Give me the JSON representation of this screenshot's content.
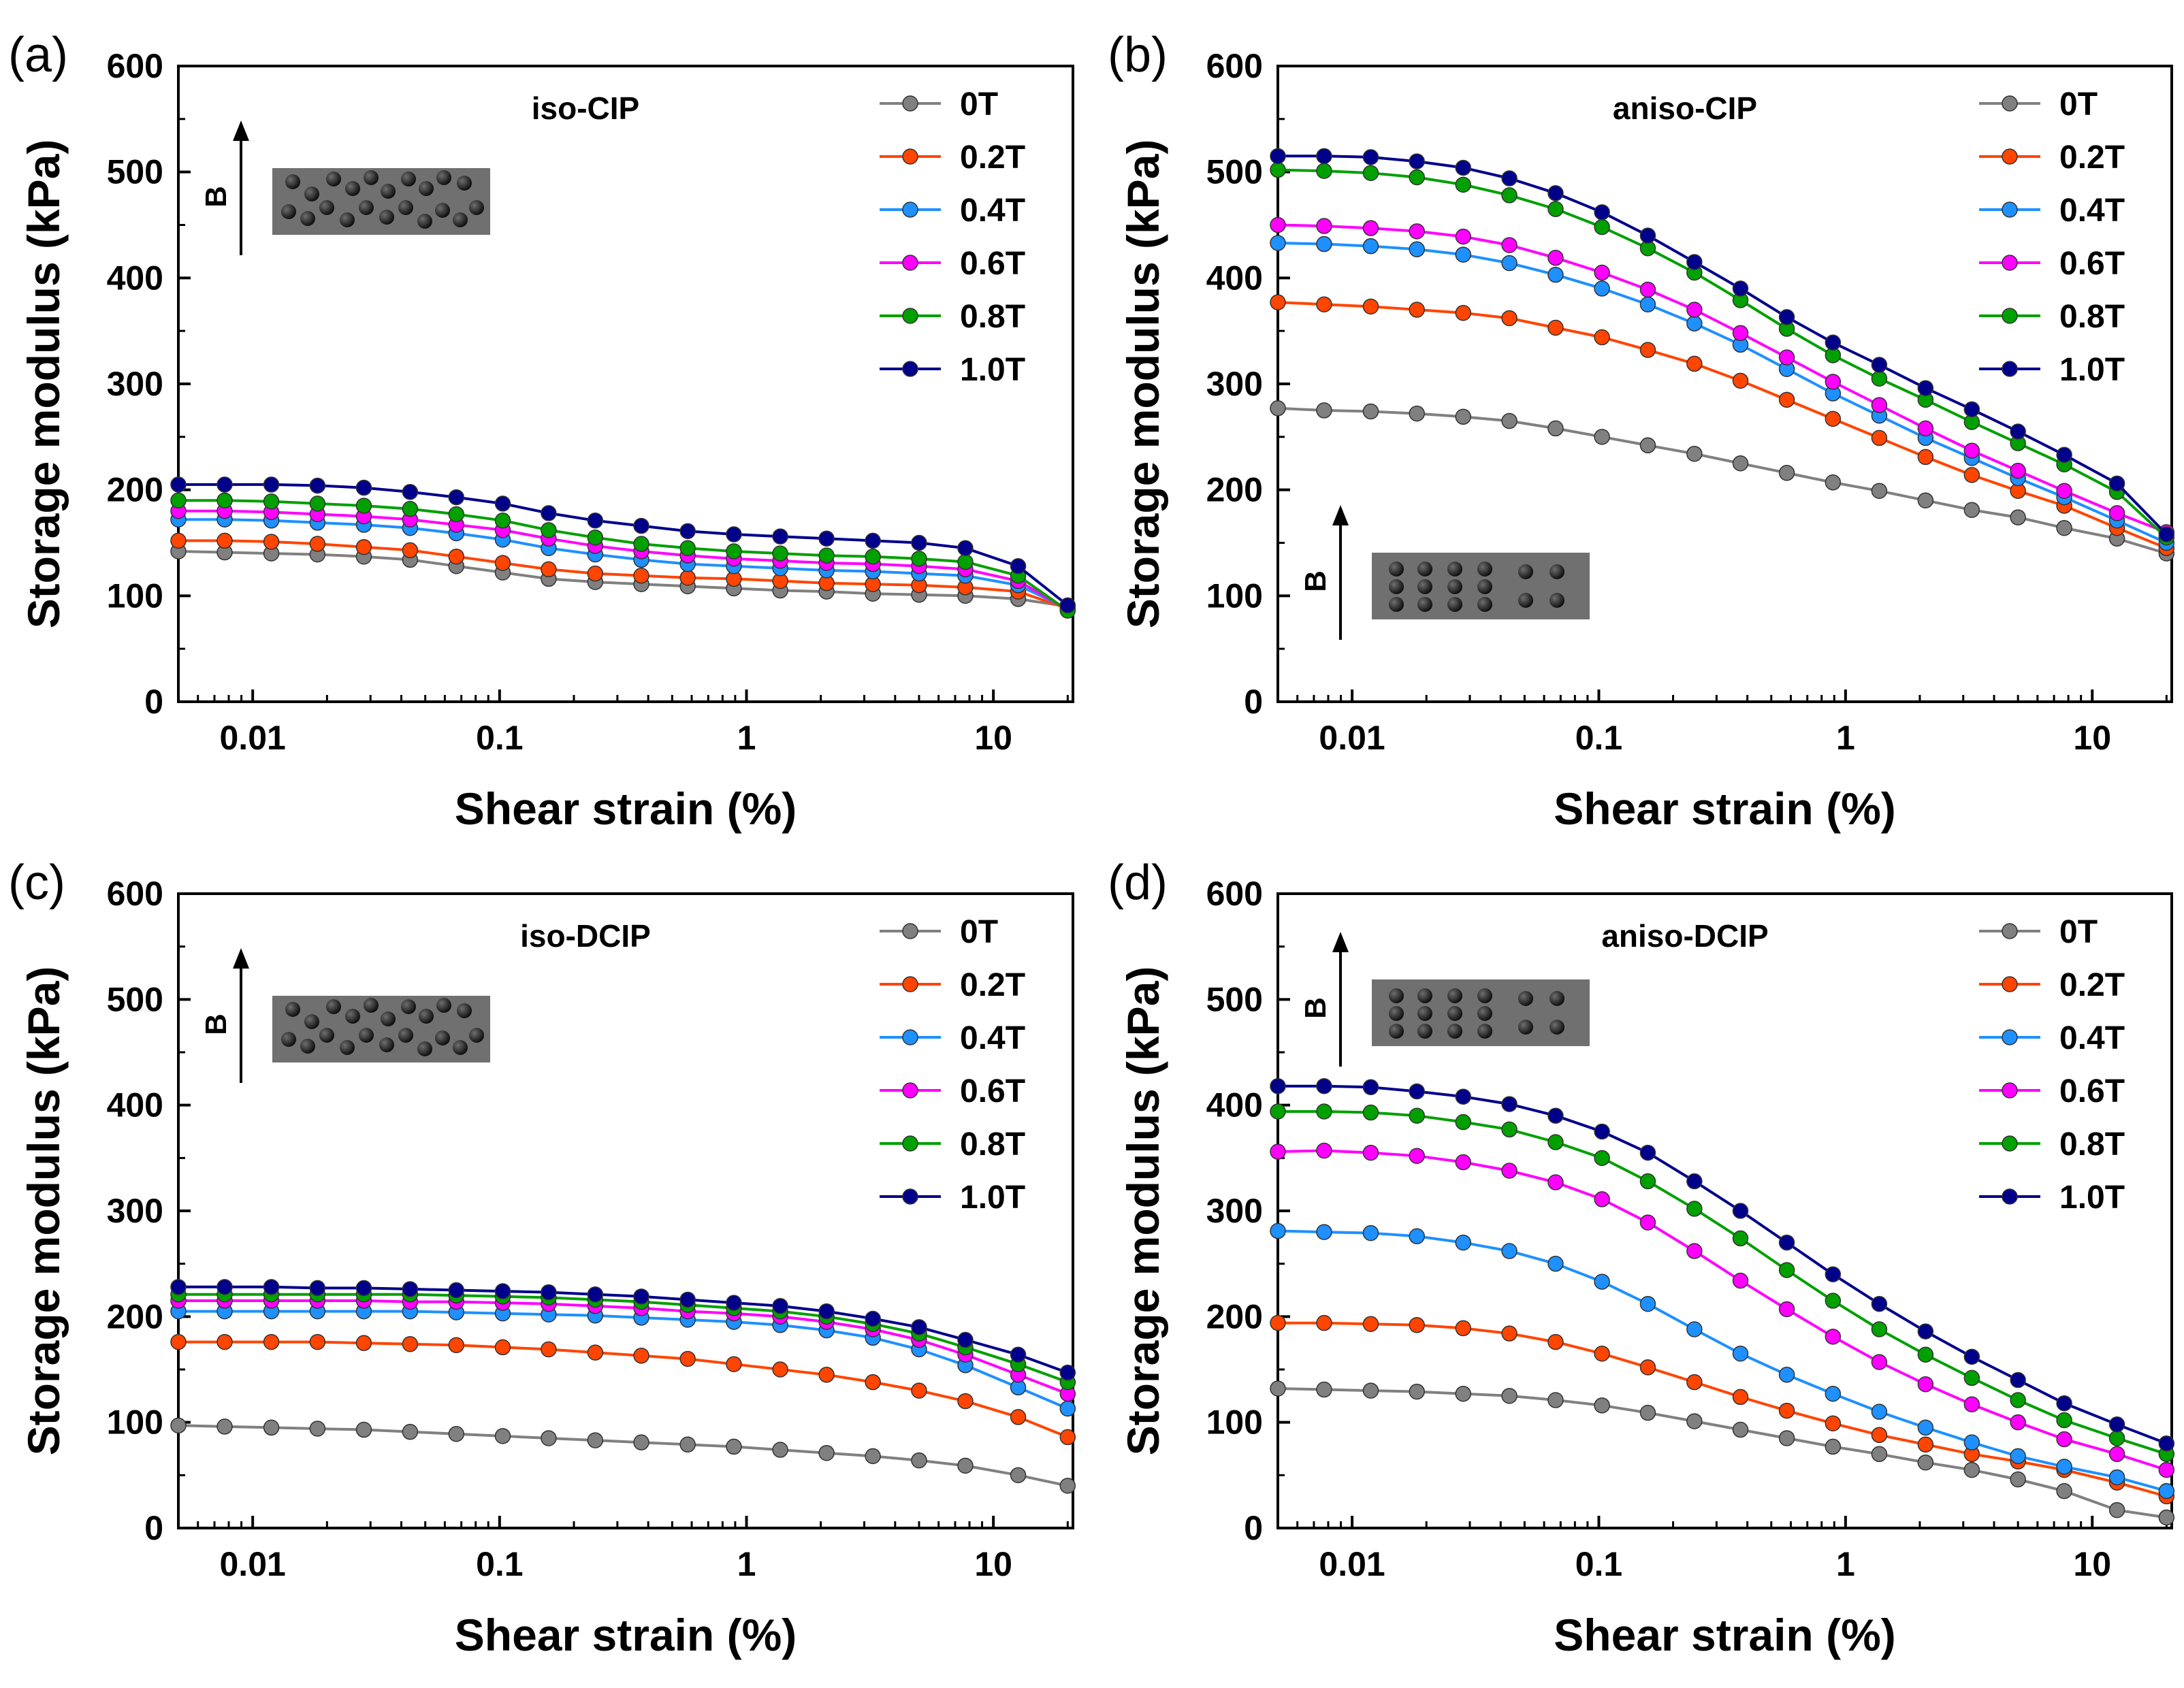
{
  "figure": {
    "x_ticks": [
      "0.01",
      "0.1",
      "1",
      "10"
    ],
    "y_ticks": [
      "0",
      "100",
      "200",
      "300",
      "400",
      "500",
      "600"
    ],
    "field_label": "B"
  },
  "chart_data": [
    {
      "type": "line",
      "panel": "(a)",
      "title": "iso-CIP",
      "xlabel": "Shear strain (%)",
      "ylabel": "Storage modulus (kPa)",
      "x_scale": "log",
      "xlim": [
        0.005,
        21
      ],
      "ylim": [
        0,
        600
      ],
      "legend_position": "top-right",
      "inset": "isotropic",
      "x": [
        0.005,
        0.0077,
        0.0119,
        0.0183,
        0.0282,
        0.0434,
        0.0668,
        0.103,
        0.158,
        0.244,
        0.375,
        0.578,
        0.889,
        1.37,
        2.11,
        3.25,
        5.0,
        7.7,
        12.6,
        20
      ],
      "series": [
        {
          "name": "0T",
          "color": "#808080",
          "values": [
            142,
            141,
            140,
            139,
            137,
            134,
            128,
            122,
            116,
            113,
            111,
            109,
            107,
            105,
            104,
            102,
            101,
            100,
            97,
            90
          ]
        },
        {
          "name": "0.2T",
          "color": "#ff4500",
          "values": [
            152,
            152,
            151,
            149,
            146,
            143,
            137,
            131,
            125,
            121,
            119,
            117,
            116,
            114,
            112,
            111,
            110,
            108,
            104,
            88
          ]
        },
        {
          "name": "0.4T",
          "color": "#1e90ff",
          "values": [
            172,
            172,
            171,
            169,
            167,
            164,
            159,
            153,
            145,
            139,
            134,
            130,
            128,
            126,
            124,
            123,
            121,
            119,
            110,
            88
          ]
        },
        {
          "name": "0.6T",
          "color": "#ff00ff",
          "values": [
            180,
            180,
            179,
            177,
            175,
            172,
            167,
            162,
            154,
            147,
            142,
            138,
            135,
            133,
            131,
            130,
            128,
            125,
            114,
            87
          ]
        },
        {
          "name": "0.8T",
          "color": "#00a000",
          "values": [
            190,
            190,
            189,
            187,
            185,
            182,
            177,
            171,
            162,
            155,
            149,
            145,
            142,
            140,
            138,
            137,
            135,
            132,
            119,
            86
          ]
        },
        {
          "name": "1.0T",
          "color": "#00008b",
          "values": [
            205,
            205,
            205,
            204,
            202,
            198,
            193,
            187,
            178,
            171,
            166,
            161,
            158,
            156,
            154,
            152,
            150,
            145,
            128,
            91
          ]
        }
      ]
    },
    {
      "type": "line",
      "panel": "(b)",
      "title": "aniso-CIP",
      "xlabel": "Shear strain (%)",
      "ylabel": "Storage modulus (kPa)",
      "x_scale": "log",
      "xlim": [
        0.005,
        21
      ],
      "ylim": [
        0,
        600
      ],
      "legend_position": "top-right",
      "inset": "anisotropic",
      "x": [
        0.005,
        0.0077,
        0.0119,
        0.0183,
        0.0282,
        0.0434,
        0.0668,
        0.103,
        0.158,
        0.244,
        0.375,
        0.578,
        0.889,
        1.37,
        2.11,
        3.25,
        5.0,
        7.7,
        12.6,
        20
      ],
      "series": [
        {
          "name": "0T",
          "color": "#808080",
          "values": [
            277,
            275,
            274,
            272,
            269,
            265,
            258,
            250,
            242,
            234,
            225,
            216,
            207,
            199,
            190,
            181,
            174,
            164,
            154,
            140
          ]
        },
        {
          "name": "0.2T",
          "color": "#ff4500",
          "values": [
            377,
            375,
            373,
            370,
            367,
            362,
            353,
            344,
            332,
            319,
            303,
            285,
            267,
            249,
            231,
            214,
            199,
            185,
            164,
            145
          ]
        },
        {
          "name": "0.4T",
          "color": "#1e90ff",
          "values": [
            433,
            432,
            430,
            427,
            422,
            414,
            403,
            390,
            375,
            357,
            337,
            314,
            291,
            270,
            249,
            230,
            211,
            193,
            171,
            150
          ]
        },
        {
          "name": "0.6T",
          "color": "#ff00ff",
          "values": [
            450,
            449,
            447,
            444,
            439,
            431,
            419,
            405,
            389,
            370,
            348,
            325,
            302,
            280,
            258,
            237,
            218,
            199,
            178,
            160
          ]
        },
        {
          "name": "0.8T",
          "color": "#00a000",
          "values": [
            502,
            501,
            499,
            495,
            488,
            478,
            465,
            448,
            428,
            405,
            379,
            352,
            327,
            305,
            285,
            264,
            244,
            224,
            198,
            155
          ]
        },
        {
          "name": "1.0T",
          "color": "#00008b",
          "values": [
            515,
            515,
            514,
            510,
            504,
            494,
            480,
            462,
            440,
            415,
            390,
            363,
            339,
            318,
            296,
            276,
            255,
            233,
            206,
            158
          ]
        }
      ]
    },
    {
      "type": "line",
      "panel": "(c)",
      "title": "iso-DCIP",
      "xlabel": "Shear strain (%)",
      "ylabel": "Storage modulus (kPa)",
      "x_scale": "log",
      "xlim": [
        0.005,
        21
      ],
      "ylim": [
        0,
        600
      ],
      "legend_position": "top-right",
      "inset": "isotropic",
      "x": [
        0.005,
        0.0077,
        0.0119,
        0.0183,
        0.0282,
        0.0434,
        0.0668,
        0.103,
        0.158,
        0.244,
        0.375,
        0.578,
        0.889,
        1.37,
        2.11,
        3.25,
        5.0,
        7.7,
        12.6,
        20
      ],
      "series": [
        {
          "name": "0T",
          "color": "#808080",
          "values": [
            97,
            96,
            95,
            94,
            93,
            91,
            89,
            87,
            85,
            83,
            81,
            79,
            77,
            74,
            71,
            68,
            64,
            59,
            50,
            40
          ]
        },
        {
          "name": "0.2T",
          "color": "#ff4500",
          "values": [
            176,
            176,
            176,
            176,
            175,
            174,
            173,
            171,
            169,
            166,
            163,
            160,
            155,
            150,
            145,
            138,
            130,
            120,
            105,
            86
          ]
        },
        {
          "name": "0.4T",
          "color": "#1e90ff",
          "values": [
            205,
            205,
            205,
            205,
            205,
            205,
            204,
            203,
            202,
            201,
            199,
            197,
            195,
            192,
            187,
            180,
            169,
            154,
            133,
            113
          ]
        },
        {
          "name": "0.6T",
          "color": "#ff00ff",
          "values": [
            215,
            215,
            215,
            215,
            215,
            214,
            214,
            213,
            212,
            210,
            208,
            205,
            203,
            200,
            195,
            188,
            178,
            164,
            145,
            127
          ]
        },
        {
          "name": "0.8T",
          "color": "#00a000",
          "values": [
            221,
            221,
            221,
            221,
            221,
            221,
            220,
            219,
            218,
            216,
            214,
            211,
            208,
            205,
            200,
            193,
            184,
            171,
            155,
            138
          ]
        },
        {
          "name": "1.0T",
          "color": "#00008b",
          "values": [
            228,
            228,
            228,
            227,
            227,
            226,
            225,
            224,
            223,
            221,
            219,
            216,
            213,
            210,
            205,
            198,
            190,
            178,
            164,
            147
          ]
        }
      ]
    },
    {
      "type": "line",
      "panel": "(d)",
      "title": "aniso-DCIP",
      "xlabel": "Shear strain (%)",
      "ylabel": "Storage modulus (kPa)",
      "x_scale": "log",
      "xlim": [
        0.005,
        21
      ],
      "ylim": [
        0,
        600
      ],
      "legend_position": "top-right",
      "inset": "anisotropic",
      "x": [
        0.005,
        0.0077,
        0.0119,
        0.0183,
        0.0282,
        0.0434,
        0.0668,
        0.103,
        0.158,
        0.244,
        0.375,
        0.578,
        0.889,
        1.37,
        2.11,
        3.25,
        5.0,
        7.7,
        12.6,
        20
      ],
      "series": [
        {
          "name": "0T",
          "color": "#808080",
          "values": [
            132,
            131,
            130,
            129,
            127,
            125,
            121,
            116,
            109,
            101,
            93,
            85,
            77,
            70,
            62,
            55,
            46,
            35,
            17,
            10
          ]
        },
        {
          "name": "0.2T",
          "color": "#ff4500",
          "values": [
            194,
            194,
            193,
            192,
            189,
            184,
            176,
            165,
            152,
            138,
            124,
            111,
            99,
            88,
            79,
            70,
            63,
            55,
            43,
            30
          ]
        },
        {
          "name": "0.4T",
          "color": "#1e90ff",
          "values": [
            281,
            280,
            279,
            276,
            270,
            262,
            250,
            233,
            212,
            188,
            165,
            145,
            127,
            110,
            95,
            81,
            68,
            58,
            48,
            35
          ]
        },
        {
          "name": "0.6T",
          "color": "#ff00ff",
          "values": [
            356,
            357,
            355,
            352,
            346,
            338,
            327,
            311,
            289,
            262,
            234,
            207,
            181,
            157,
            136,
            117,
            100,
            84,
            70,
            55
          ]
        },
        {
          "name": "0.8T",
          "color": "#00a000",
          "values": [
            394,
            394,
            393,
            390,
            384,
            377,
            365,
            350,
            328,
            302,
            274,
            244,
            215,
            188,
            164,
            142,
            121,
            102,
            85,
            70
          ]
        },
        {
          "name": "1.0T",
          "color": "#00008b",
          "values": [
            418,
            418,
            417,
            413,
            408,
            401,
            390,
            375,
            355,
            328,
            300,
            270,
            240,
            212,
            186,
            162,
            140,
            118,
            98,
            80
          ]
        }
      ]
    }
  ]
}
